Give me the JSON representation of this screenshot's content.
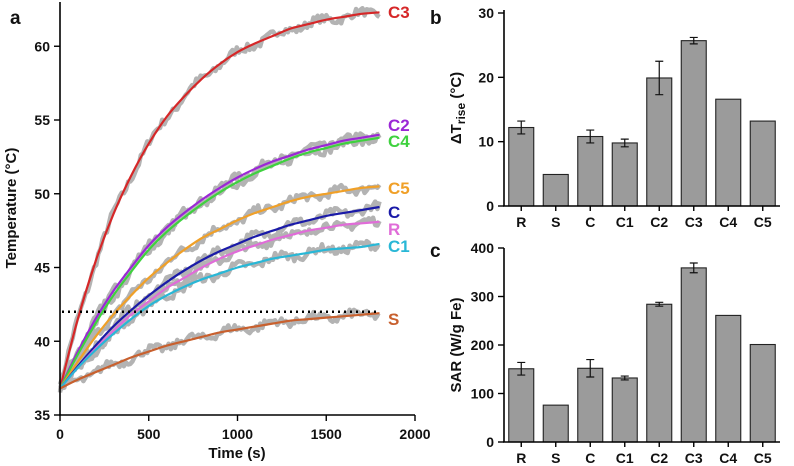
{
  "chart_data": [
    {
      "panel": "a",
      "type": "line",
      "xlabel": "Time (s)",
      "ylabel": "Temperature (°C)",
      "xlim": [
        0,
        2000
      ],
      "ylim": [
        35,
        63
      ],
      "xticks": [
        0,
        500,
        1000,
        1500,
        2000
      ],
      "yticks": [
        35,
        40,
        45,
        50,
        55,
        60
      ],
      "threshold": {
        "y": 42,
        "style": "dotted"
      },
      "series": [
        {
          "name": "C3",
          "color": "#d62728",
          "x": [
            0,
            100,
            200,
            300,
            400,
            500,
            600,
            700,
            800,
            900,
            1000,
            1100,
            1200,
            1300,
            1400,
            1500,
            1600,
            1700,
            1800
          ],
          "y": [
            36.8,
            41.5,
            45.4,
            48.6,
            51.2,
            53.4,
            55.2,
            56.6,
            57.8,
            58.8,
            59.6,
            60.2,
            60.7,
            61.2,
            61.5,
            61.8,
            62.0,
            62.2,
            62.3
          ]
        },
        {
          "name": "C2",
          "color": "#9b27d6",
          "x": [
            0,
            100,
            200,
            300,
            400,
            500,
            600,
            700,
            800,
            900,
            1000,
            1100,
            1200,
            1300,
            1400,
            1500,
            1600,
            1700,
            1800
          ],
          "y": [
            36.8,
            39.3,
            41.5,
            43.4,
            45.0,
            46.5,
            47.7,
            48.7,
            49.6,
            50.4,
            51.1,
            51.7,
            52.2,
            52.6,
            53.0,
            53.3,
            53.6,
            53.8,
            54.0
          ]
        },
        {
          "name": "C4",
          "color": "#3fd13f",
          "x": [
            0,
            100,
            200,
            300,
            400,
            500,
            600,
            700,
            800,
            900,
            1000,
            1100,
            1200,
            1300,
            1400,
            1500,
            1600,
            1700,
            1800
          ],
          "y": [
            36.8,
            39.1,
            41.2,
            43.1,
            44.7,
            46.2,
            47.4,
            48.4,
            49.3,
            50.1,
            50.8,
            51.4,
            51.9,
            52.4,
            52.8,
            53.1,
            53.4,
            53.6,
            53.8
          ]
        },
        {
          "name": "C5",
          "color": "#f0a028",
          "x": [
            0,
            100,
            200,
            300,
            400,
            500,
            600,
            700,
            800,
            900,
            1000,
            1100,
            1200,
            1300,
            1400,
            1500,
            1600,
            1700,
            1800
          ],
          "y": [
            36.8,
            38.6,
            40.3,
            41.8,
            43.1,
            44.3,
            45.3,
            46.2,
            47.0,
            47.6,
            48.2,
            48.7,
            49.1,
            49.5,
            49.8,
            50.0,
            50.2,
            50.4,
            50.5
          ]
        },
        {
          "name": "C",
          "color": "#1a1aa8",
          "x": [
            0,
            100,
            200,
            300,
            400,
            500,
            600,
            700,
            800,
            900,
            1000,
            1100,
            1200,
            1300,
            1400,
            1500,
            1600,
            1700,
            1800
          ],
          "y": [
            36.8,
            38.3,
            39.7,
            41.0,
            42.1,
            43.1,
            44.0,
            44.8,
            45.5,
            46.1,
            46.6,
            47.1,
            47.5,
            47.9,
            48.2,
            48.5,
            48.7,
            48.9,
            49.1
          ]
        },
        {
          "name": "R",
          "color": "#e06cd8",
          "x": [
            0,
            100,
            200,
            300,
            400,
            500,
            600,
            700,
            800,
            900,
            1000,
            1100,
            1200,
            1300,
            1400,
            1500,
            1600,
            1700,
            1800
          ],
          "y": [
            36.8,
            38.2,
            39.5,
            40.7,
            41.8,
            42.7,
            43.6,
            44.3,
            45.0,
            45.6,
            46.1,
            46.5,
            46.9,
            47.2,
            47.5,
            47.7,
            47.9,
            48.0,
            48.1
          ]
        },
        {
          "name": "C1",
          "color": "#29b7d6",
          "x": [
            0,
            100,
            200,
            300,
            400,
            500,
            600,
            700,
            800,
            900,
            1000,
            1100,
            1200,
            1300,
            1400,
            1500,
            1600,
            1700,
            1800
          ],
          "y": [
            36.8,
            38.2,
            39.4,
            40.5,
            41.5,
            42.4,
            43.1,
            43.7,
            44.2,
            44.6,
            45.0,
            45.3,
            45.6,
            45.8,
            46.0,
            46.2,
            46.3,
            46.4,
            46.6
          ]
        },
        {
          "name": "S",
          "color": "#c8602e",
          "x": [
            0,
            100,
            200,
            300,
            400,
            500,
            600,
            700,
            800,
            900,
            1000,
            1100,
            1200,
            1300,
            1400,
            1500,
            1600,
            1700,
            1800
          ],
          "y": [
            36.8,
            37.4,
            37.9,
            38.4,
            38.9,
            39.3,
            39.7,
            40.0,
            40.3,
            40.6,
            40.8,
            41.0,
            41.2,
            41.4,
            41.5,
            41.6,
            41.7,
            41.8,
            41.9
          ]
        }
      ]
    },
    {
      "panel": "b",
      "type": "bar",
      "categories": [
        "R",
        "S",
        "C",
        "C1",
        "C2",
        "C3",
        "C4",
        "C5"
      ],
      "values": [
        12.2,
        4.9,
        10.8,
        9.8,
        19.9,
        25.7,
        16.6,
        13.2
      ],
      "errors": [
        1.0,
        0,
        1.0,
        0.6,
        2.6,
        0.5,
        0,
        0
      ],
      "ylabel_prefix": "ΔT",
      "ylabel_sub": "rise",
      "ylabel_suffix": " (°C)",
      "ylim": [
        0,
        30
      ],
      "yticks": [
        0,
        10,
        20,
        30
      ]
    },
    {
      "panel": "c",
      "type": "bar",
      "categories": [
        "R",
        "S",
        "C",
        "C1",
        "C2",
        "C3",
        "C4",
        "C5"
      ],
      "values": [
        151,
        76,
        152,
        132,
        284,
        359,
        261,
        201
      ],
      "errors": [
        13,
        0,
        18,
        4,
        4,
        10,
        0,
        0
      ],
      "ylabel": "SAR (W/g Fe)",
      "ylim": [
        0,
        400
      ],
      "yticks": [
        0,
        100,
        200,
        300,
        400
      ]
    }
  ]
}
